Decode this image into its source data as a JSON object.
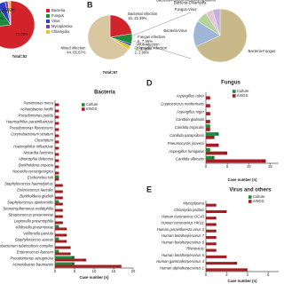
{
  "chart_data": [
    {
      "type": "pie",
      "total_label": "Total=52",
      "legend": "right",
      "categories": [
        "Bacteria",
        "Fungus",
        "Virus",
        "Mycoplasma",
        "Chlamydia"
      ],
      "values": [
        73.08,
        17.31,
        5.77,
        1.92,
        1.92
      ],
      "value_labels": [
        "73.08%",
        "17.31%",
        "5.77%",
        "1.92%",
        "1.92%"
      ],
      "colors": [
        "#d2232a",
        "#1f8a3c",
        "#2b3fc4",
        "#7a3fa8",
        "#e3c52a"
      ]
    },
    {
      "type": "pie",
      "panel": "B",
      "total_label": "Total=67",
      "categories": [
        "Bacterial infection",
        "Fungus infection",
        "Virus infection",
        "Chlamydia infection",
        "Mixed infection"
      ],
      "values": [
        15,
        5,
        1,
        2,
        44
      ],
      "value_labels": [
        "15, 22.39%",
        "5, 7.46%",
        "1, 1.49%",
        "2, 2.99%",
        "44, 65.67%"
      ],
      "colors": [
        "#d2232a",
        "#1f8a3c",
        "#2b3fc4",
        "#e3c52a",
        "#d8c7a0"
      ]
    },
    {
      "type": "pie",
      "categories": [
        "Bacteria-Fungus",
        "Bacteria-Virus",
        "Fungus-Virus",
        "Bacteria-Chlamydia",
        "Bacteria-Fungus-Virus-Mycoplasma"
      ],
      "values": [
        30,
        7,
        3,
        2,
        2
      ],
      "colors": [
        "#c9b98a",
        "#9fb6d8",
        "#b7d39c",
        "#e6c6d9",
        "#c4b0e0"
      ]
    },
    {
      "type": "hbar",
      "title": "Bacteria",
      "xlabel": "Case number (n)",
      "categories": [
        "Parvimonas micra",
        "Acinetobacter lwoffii",
        "Pseudomonas putida",
        "Haemophilus parainfluenzae",
        "Pseudomonas fluorescens",
        "Corynebacterium striatum",
        "Clostridium",
        "Haemophilus influenzae",
        "Nocardia farcinica",
        "Abiotrophia defectiva",
        "Burkholderia cepacia",
        "Nocardia cyriacigeorgica",
        "Escherichia coli",
        "Staphylococcus haemolyticus",
        "Enterococcus faecalis",
        "Burkholderia gladioli",
        "Staphylococcus epidermidis",
        "Stenotrophomonas maltophilia",
        "Streptococcus pneumoniae",
        "Legionella pneumophila",
        "Klebsiella pneumoniae",
        "Veillonella parvula",
        "Staphylococcus aureus",
        "Mycobacterium tuberculosis complex",
        "Enterococcus faecium",
        "Pseudomonas aeruginosa",
        "Acinetobacter baumannii"
      ],
      "series": [
        {
          "name": "Culture",
          "color": "#1f8a3c",
          "values": [
            0,
            0,
            0,
            0,
            0,
            0,
            0,
            0,
            0,
            0,
            0,
            0,
            1,
            0,
            0,
            0,
            1,
            0,
            0,
            0,
            1,
            0,
            1,
            0,
            1,
            5,
            5
          ]
        },
        {
          "name": "mNGS",
          "color": "#a31f24",
          "values": [
            1,
            1,
            1,
            1,
            1,
            1,
            1,
            1,
            1,
            1,
            1,
            1,
            1,
            2,
            2,
            2,
            2,
            2,
            2,
            2,
            3,
            3,
            3,
            4,
            4,
            8,
            17
          ]
        }
      ],
      "xlim": [
        0,
        20
      ],
      "xticks": [
        0,
        5,
        10,
        15,
        20
      ]
    },
    {
      "type": "hbar",
      "panel": "D",
      "title": "Fungus",
      "xlabel": "Case number (n)",
      "categories": [
        "Aspergillus ruber",
        "Cryptococcus neoformans",
        "Aspergillus niger",
        "Candida glabrata",
        "Candida tropicalis",
        "Candida parapsilosis",
        "Pneumocystis jirovecii",
        "Aspergillus fumigatus",
        "Candida albicans"
      ],
      "series": [
        {
          "name": "Culture",
          "color": "#1f8a3c",
          "values": [
            0,
            0,
            0,
            0,
            1,
            3,
            0,
            1,
            2
          ]
        },
        {
          "name": "mNGS",
          "color": "#a31f24",
          "values": [
            1,
            1,
            1,
            1,
            1,
            2,
            3,
            5,
            14
          ]
        }
      ],
      "xlim": [
        0,
        17
      ],
      "xticks": [
        0,
        5,
        10,
        15
      ]
    },
    {
      "type": "hbar",
      "panel": "E",
      "title": "Virus and others",
      "xlabel": "Case number (n)",
      "categories": [
        "Mycoplasma",
        "Chlamydia psittaci",
        "Human coronavirus OC43",
        "Human coronavirus HKU1",
        "Human parainfluenza virus 3",
        "Human betaherpesvirus 7",
        "Human betaherpesvirus 6",
        "Rhinovirus",
        "Human betaherpesvirus 5",
        "Human gammaherpesvirus 4",
        "Human alphaherpesvirus 1"
      ],
      "series": [
        {
          "name": "Culture",
          "color": "#1f8a3c",
          "values": [
            0,
            0,
            0,
            0,
            0,
            0,
            0,
            0,
            0,
            0,
            0
          ]
        },
        {
          "name": "mNGS",
          "color": "#a31f24",
          "values": [
            1,
            2,
            1,
            1,
            1,
            1,
            1,
            1,
            2,
            3,
            4
          ]
        }
      ],
      "xlim": [
        0,
        7
      ],
      "xticks": [
        0,
        2,
        4,
        6
      ]
    }
  ]
}
